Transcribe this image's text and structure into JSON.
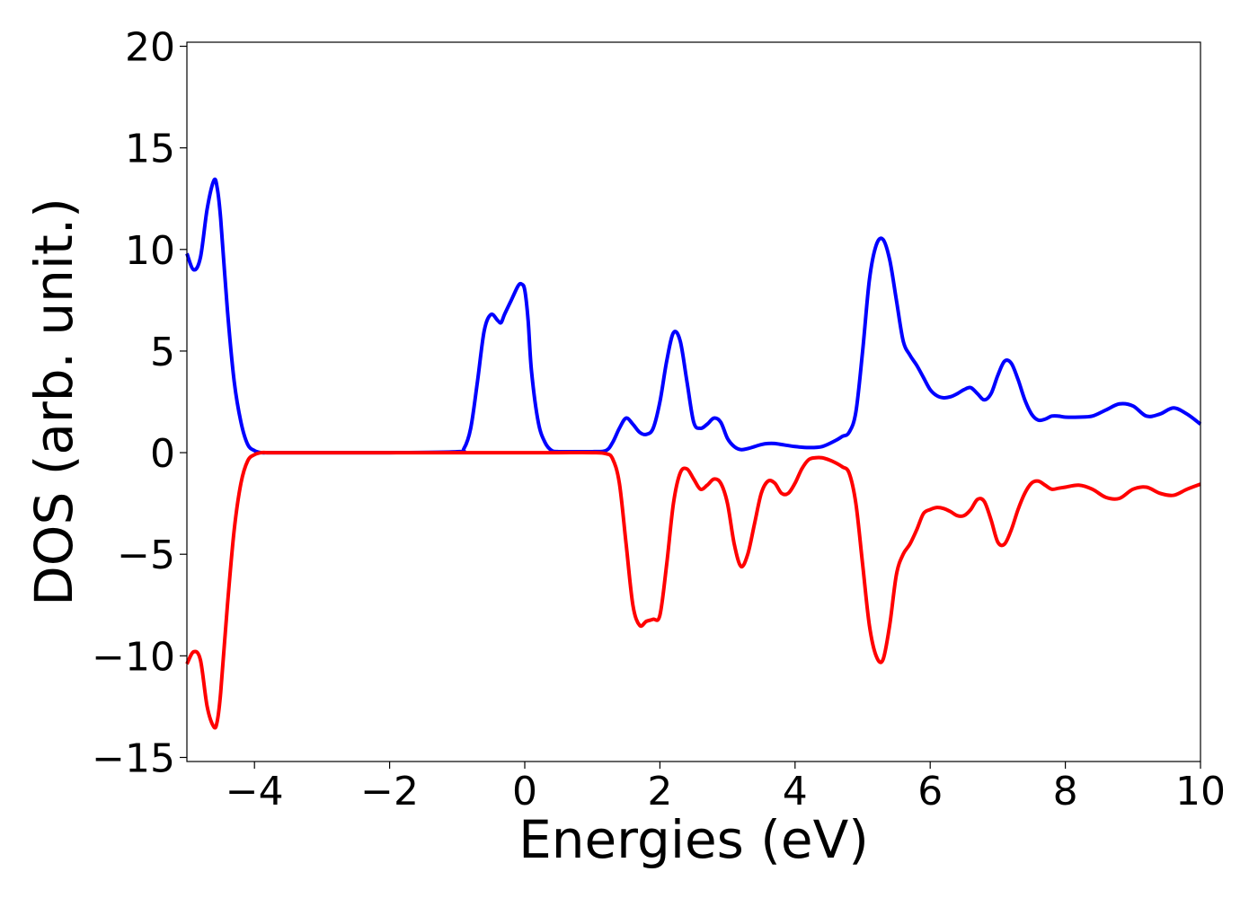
{
  "chart_data": {
    "type": "line",
    "title": "",
    "xlabel": "Energies (eV)",
    "ylabel": "DOS (arb. unit.)",
    "xlim": [
      -5,
      10
    ],
    "ylim": [
      -15.2,
      20.2
    ],
    "xticks": [
      -4,
      -2,
      0,
      2,
      4,
      6,
      8,
      10
    ],
    "xtick_labels": [
      "−4",
      "−2",
      "0",
      "2",
      "4",
      "6",
      "8",
      "10"
    ],
    "yticks": [
      -15,
      -10,
      -5,
      0,
      5,
      10,
      15,
      20
    ],
    "ytick_labels": [
      "−15",
      "−10",
      "−5",
      "0",
      "5",
      "10",
      "15",
      "20"
    ],
    "grid": false,
    "legend": "none",
    "series": [
      {
        "color": "#0000ff",
        "x": [
          -5.0,
          -4.9,
          -4.8,
          -4.7,
          -4.6,
          -4.55,
          -4.5,
          -4.4,
          -4.3,
          -4.2,
          -4.1,
          -4.0,
          -3.9,
          -3.8,
          -3.7,
          -3.5,
          -3.0,
          -2.0,
          -1.0,
          -0.9,
          -0.8,
          -0.7,
          -0.6,
          -0.5,
          -0.4,
          -0.35,
          -0.3,
          -0.2,
          -0.1,
          -0.05,
          0.0,
          0.05,
          0.1,
          0.2,
          0.3,
          0.4,
          0.5,
          0.6,
          0.8,
          1.0,
          1.2,
          1.3,
          1.4,
          1.5,
          1.6,
          1.7,
          1.8,
          1.9,
          2.0,
          2.1,
          2.2,
          2.3,
          2.4,
          2.5,
          2.6,
          2.7,
          2.8,
          2.9,
          3.0,
          3.1,
          3.2,
          3.3,
          3.4,
          3.5,
          3.6,
          3.7,
          3.8,
          4.0,
          4.2,
          4.4,
          4.6,
          4.7,
          4.8,
          4.9,
          5.0,
          5.1,
          5.2,
          5.3,
          5.4,
          5.5,
          5.6,
          5.7,
          5.8,
          5.9,
          6.0,
          6.1,
          6.2,
          6.3,
          6.4,
          6.5,
          6.6,
          6.7,
          6.8,
          6.9,
          7.0,
          7.1,
          7.2,
          7.3,
          7.4,
          7.5,
          7.6,
          7.7,
          7.8,
          7.9,
          8.0,
          8.2,
          8.4,
          8.6,
          8.8,
          9.0,
          9.2,
          9.4,
          9.6,
          9.8,
          10.0
        ],
        "y": [
          9.8,
          9.0,
          9.6,
          12.0,
          13.4,
          13.0,
          11.5,
          7.0,
          3.5,
          1.5,
          0.4,
          0.1,
          0.0,
          0.0,
          0.0,
          0.0,
          0.0,
          0.0,
          0.05,
          0.2,
          1.2,
          3.5,
          6.0,
          6.8,
          6.5,
          6.4,
          6.8,
          7.5,
          8.2,
          8.3,
          8.0,
          6.5,
          4.0,
          1.5,
          0.5,
          0.1,
          0.05,
          0.05,
          0.05,
          0.05,
          0.1,
          0.5,
          1.2,
          1.7,
          1.4,
          1.0,
          0.9,
          1.2,
          2.5,
          4.5,
          5.9,
          5.5,
          3.5,
          1.5,
          1.2,
          1.4,
          1.7,
          1.5,
          0.7,
          0.3,
          0.15,
          0.2,
          0.3,
          0.4,
          0.45,
          0.45,
          0.4,
          0.3,
          0.25,
          0.3,
          0.6,
          0.8,
          1.0,
          2.0,
          5.0,
          8.5,
          10.2,
          10.5,
          9.5,
          7.5,
          5.5,
          4.8,
          4.3,
          3.7,
          3.1,
          2.8,
          2.7,
          2.75,
          2.9,
          3.1,
          3.2,
          2.9,
          2.6,
          2.9,
          3.8,
          4.5,
          4.4,
          3.6,
          2.6,
          1.9,
          1.6,
          1.65,
          1.8,
          1.8,
          1.75,
          1.75,
          1.8,
          2.1,
          2.4,
          2.3,
          1.8,
          1.9,
          2.2,
          1.9,
          1.4
        ]
      },
      {
        "color": "#ff0000",
        "x": [
          -5.0,
          -4.9,
          -4.8,
          -4.7,
          -4.6,
          -4.55,
          -4.5,
          -4.4,
          -4.3,
          -4.2,
          -4.1,
          -4.0,
          -3.9,
          -3.8,
          -3.7,
          -3.5,
          -3.0,
          -2.0,
          -1.0,
          0.0,
          0.5,
          1.0,
          1.2,
          1.3,
          1.4,
          1.5,
          1.6,
          1.7,
          1.8,
          1.9,
          2.0,
          2.1,
          2.2,
          2.3,
          2.4,
          2.5,
          2.6,
          2.7,
          2.8,
          2.9,
          3.0,
          3.1,
          3.2,
          3.3,
          3.4,
          3.5,
          3.6,
          3.7,
          3.8,
          3.9,
          4.0,
          4.1,
          4.2,
          4.3,
          4.4,
          4.5,
          4.6,
          4.7,
          4.8,
          4.9,
          5.0,
          5.1,
          5.2,
          5.3,
          5.4,
          5.5,
          5.6,
          5.7,
          5.8,
          5.9,
          6.0,
          6.1,
          6.2,
          6.3,
          6.4,
          6.5,
          6.6,
          6.7,
          6.8,
          6.9,
          7.0,
          7.1,
          7.2,
          7.3,
          7.4,
          7.5,
          7.6,
          7.7,
          7.8,
          7.9,
          8.0,
          8.2,
          8.4,
          8.6,
          8.8,
          9.0,
          9.2,
          9.4,
          9.6,
          9.8,
          10.0
        ],
        "y": [
          -10.4,
          -9.8,
          -10.2,
          -12.5,
          -13.5,
          -13.2,
          -11.8,
          -7.5,
          -3.8,
          -1.5,
          -0.4,
          -0.1,
          0.0,
          0.0,
          0.0,
          0.0,
          0.0,
          0.0,
          0.0,
          0.0,
          0.0,
          0.0,
          -0.05,
          -0.3,
          -1.5,
          -4.5,
          -7.5,
          -8.5,
          -8.3,
          -8.2,
          -8.0,
          -5.5,
          -2.5,
          -1.0,
          -0.8,
          -1.3,
          -1.8,
          -1.6,
          -1.3,
          -1.5,
          -2.5,
          -4.5,
          -5.6,
          -5.0,
          -3.5,
          -2.0,
          -1.4,
          -1.5,
          -2.0,
          -2.0,
          -1.5,
          -0.8,
          -0.35,
          -0.25,
          -0.25,
          -0.35,
          -0.5,
          -0.7,
          -1.0,
          -2.5,
          -5.5,
          -8.5,
          -10.0,
          -10.2,
          -8.5,
          -6.0,
          -5.0,
          -4.5,
          -3.8,
          -3.0,
          -2.8,
          -2.7,
          -2.75,
          -2.9,
          -3.1,
          -3.1,
          -2.8,
          -2.3,
          -2.4,
          -3.3,
          -4.4,
          -4.5,
          -3.8,
          -2.8,
          -2.0,
          -1.5,
          -1.4,
          -1.6,
          -1.8,
          -1.75,
          -1.7,
          -1.6,
          -1.8,
          -2.2,
          -2.25,
          -1.8,
          -1.7,
          -2.0,
          -2.1,
          -1.8,
          -1.55
        ]
      }
    ]
  }
}
